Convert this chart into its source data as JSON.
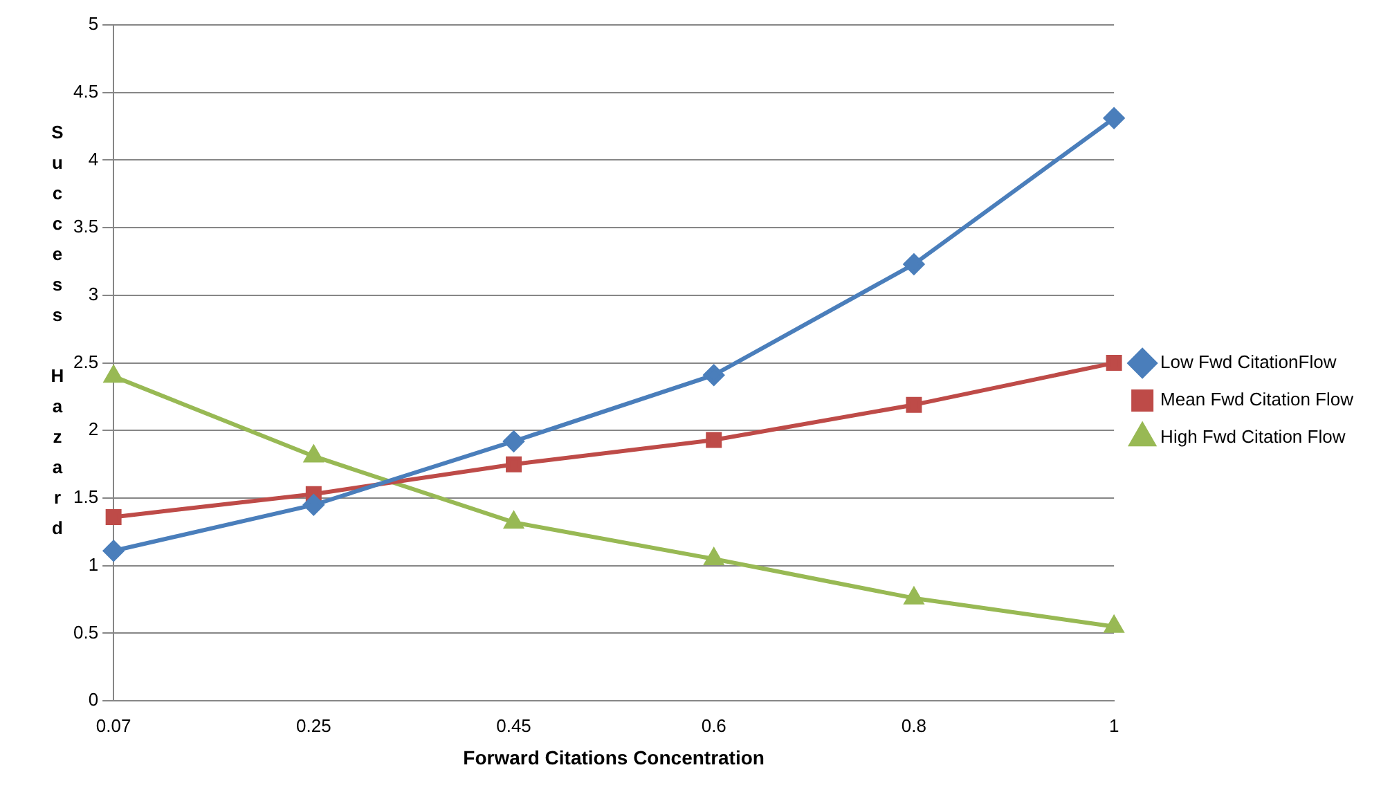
{
  "chart_data": {
    "type": "line",
    "xlabel": "Forward Citations Concentration",
    "ylabel": "Success Hazard",
    "categories": [
      "0.07",
      "0.25",
      "0.45",
      "0.6",
      "0.8",
      "1"
    ],
    "series": [
      {
        "name": "Low Fwd CitationFlow",
        "color": "#4a7ebb",
        "marker": "diamond",
        "values": [
          1.11,
          1.45,
          1.92,
          2.41,
          3.23,
          4.31
        ]
      },
      {
        "name": "Mean Fwd Citation Flow",
        "color": "#be4b48",
        "marker": "square",
        "values": [
          1.36,
          1.53,
          1.75,
          1.93,
          2.19,
          2.5
        ]
      },
      {
        "name": "High Fwd Citation Flow",
        "color": "#98b954",
        "marker": "triangle",
        "values": [
          2.4,
          1.81,
          1.32,
          1.05,
          0.76,
          0.55
        ]
      }
    ],
    "ylim": [
      0,
      5
    ],
    "yticks": [
      0,
      0.5,
      1,
      1.5,
      2,
      2.5,
      3,
      3.5,
      4,
      4.5,
      5
    ],
    "grid": "y",
    "legend": "right",
    "line_style": "solid"
  }
}
